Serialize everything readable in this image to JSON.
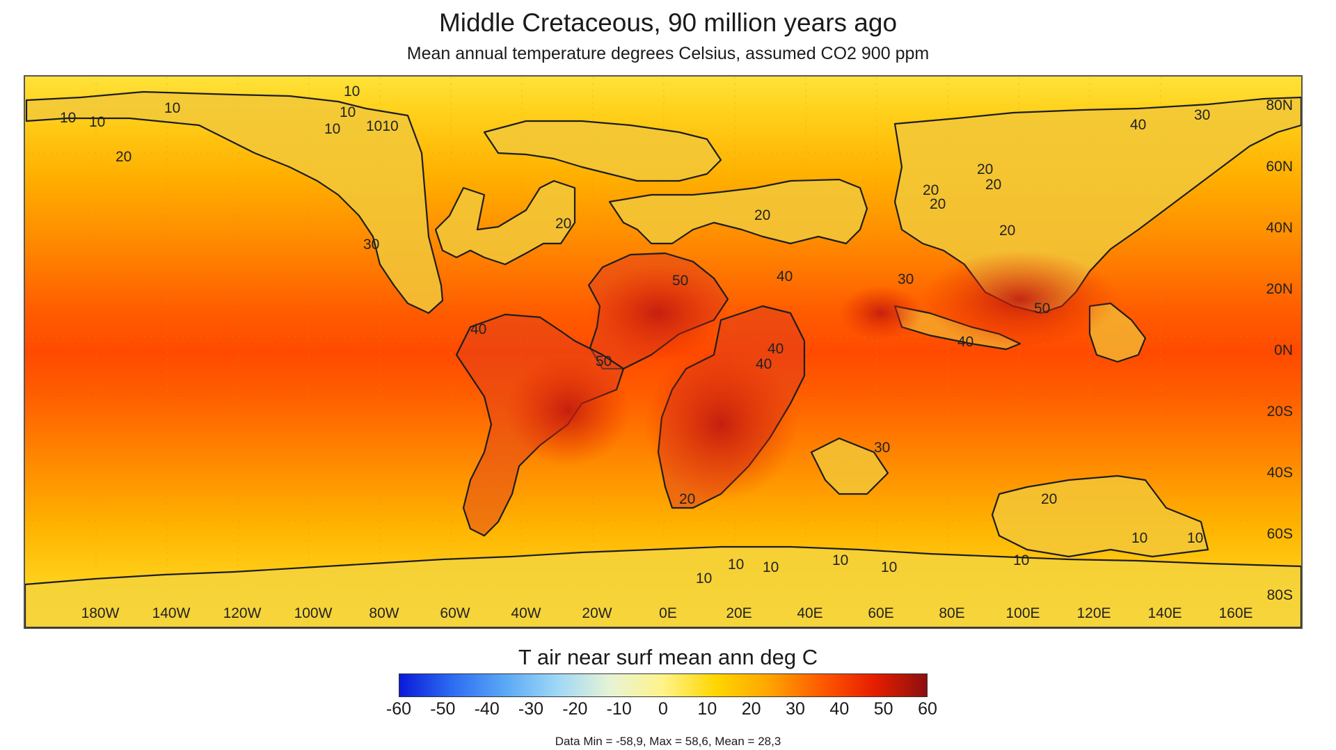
{
  "title": "Middle Cretaceous, 90 million years ago",
  "subtitle": "Mean annual temperature degrees Celsius, assumed CO2 900 ppm",
  "map": {
    "lat_labels": [
      "80N",
      "60N",
      "40N",
      "20N",
      "0N",
      "20S",
      "40S",
      "60S",
      "80S"
    ],
    "lon_labels": [
      "180W",
      "140W",
      "120W",
      "100W",
      "80W",
      "60W",
      "40W",
      "20W",
      "0E",
      "20E",
      "40E",
      "60E",
      "80E",
      "100E",
      "120E",
      "140E",
      "160E"
    ],
    "contour_labels": [
      "10",
      "10",
      "10",
      "10",
      "10",
      "10",
      "1010",
      "20",
      "30",
      "20",
      "20",
      "20",
      "20",
      "20",
      "20",
      "20",
      "50",
      "40",
      "30",
      "40",
      "50",
      "50",
      "40",
      "40",
      "40",
      "30",
      "20",
      "20",
      "10",
      "10",
      "10",
      "10",
      "10",
      "10",
      "10",
      "10",
      "40",
      "30"
    ]
  },
  "colorbar": {
    "title": "T air near surf mean ann deg C",
    "ticks": [
      "-60",
      "-50",
      "-40",
      "-30",
      "-20",
      "-10",
      "0",
      "10",
      "20",
      "30",
      "40",
      "50",
      "60"
    ],
    "range": [
      -60,
      60
    ],
    "colors": [
      "#0a1ad8",
      "#2d6cf2",
      "#5aa8f5",
      "#9fd8f6",
      "#e7f3d4",
      "#fff38a",
      "#ffd600",
      "#ffa500",
      "#ff5a00",
      "#e61e00",
      "#8c0f0f"
    ]
  },
  "stats": "Data Min = -58,9, Max = 58,6, Mean = 28,3"
}
